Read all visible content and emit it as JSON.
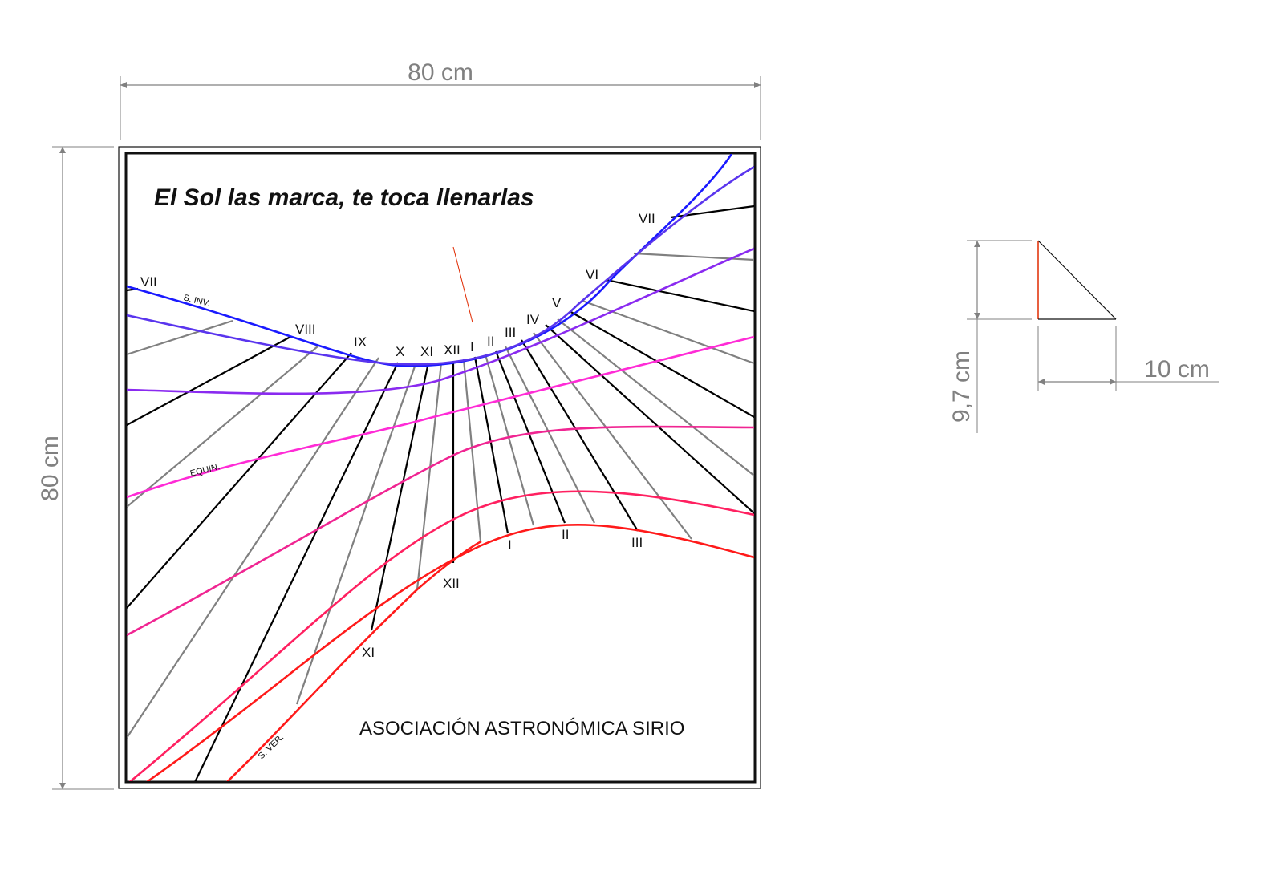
{
  "dimensions": {
    "width_label": "80 cm",
    "height_label": "80 cm",
    "gnomon_height_label": "9,7 cm",
    "gnomon_base_label": "10 cm"
  },
  "dial": {
    "motto": "El Sol las marca, te toca llenarlas",
    "organization": "ASOCIACIÓN ASTRONÓMICA SIRIO",
    "curve_labels": {
      "winter": "S. INV.",
      "equinox": "EQUIN.",
      "summer": "S. VER."
    },
    "hours_upper": [
      "VII",
      "VIII",
      "IX",
      "X",
      "XI",
      "XII",
      "I",
      "II",
      "III",
      "IV",
      "V",
      "VI",
      "VII"
    ],
    "hours_lower": [
      "XI",
      "XII",
      "I",
      "II",
      "III"
    ]
  },
  "colors": {
    "dimension": "#808080",
    "winter_solstice": "#1a1aff",
    "equinox": "#ff2bd6",
    "summer_solstice": "#ff1a1a",
    "hour_line": "#000000",
    "half_hour_line": "#808080",
    "gnomon_style": "#e02a00"
  }
}
